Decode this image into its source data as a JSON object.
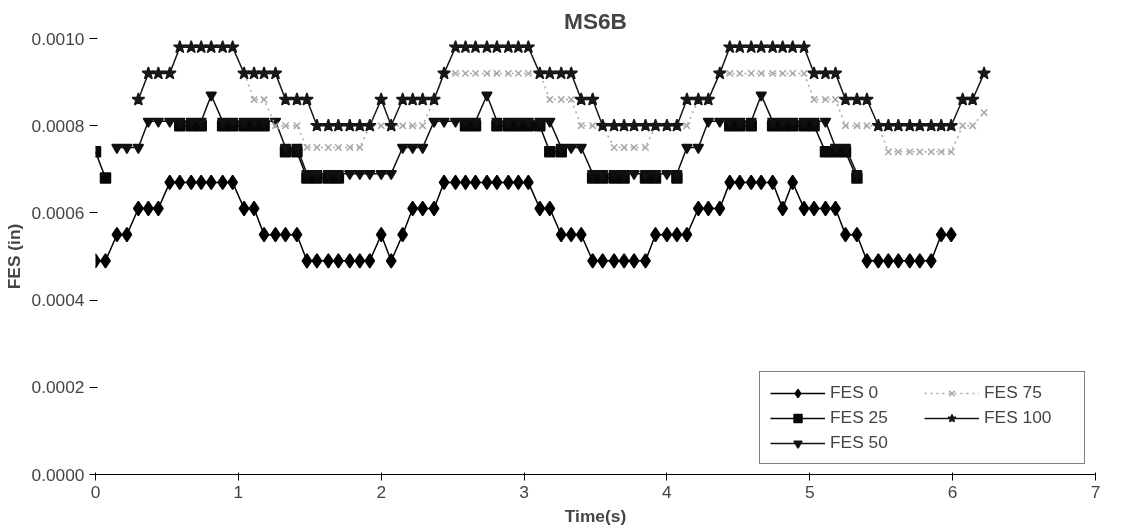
{
  "chart_data": {
    "type": "line",
    "title": "MS6B",
    "xlabel": "Time(s)",
    "ylabel": "FES (in)",
    "x": [
      0,
      0.07,
      0.15,
      0.22,
      0.3,
      0.37,
      0.44,
      0.52,
      0.59,
      0.67,
      0.74,
      0.81,
      0.89,
      0.96,
      1.04,
      1.11,
      1.18,
      1.26,
      1.33,
      1.41,
      1.48,
      1.55,
      1.63,
      1.7,
      1.78,
      1.85,
      1.92,
      2.0,
      2.07,
      2.15,
      2.22,
      2.29,
      2.37,
      2.44,
      2.52,
      2.59,
      2.66,
      2.74,
      2.81,
      2.89,
      2.96,
      3.03,
      3.11,
      3.18,
      3.26,
      3.33,
      3.4,
      3.48,
      3.55,
      3.63,
      3.7,
      3.77,
      3.85,
      3.92,
      4.0,
      4.07,
      4.14,
      4.22,
      4.29,
      4.37,
      4.44,
      4.51,
      4.59,
      4.66,
      4.74,
      4.81,
      4.88,
      4.96,
      5.03,
      5.11,
      5.18,
      5.25,
      5.33,
      5.4,
      5.48,
      5.55,
      5.62,
      5.7,
      5.77,
      5.85,
      5.92,
      5.99,
      6.07,
      6.14,
      6.22
    ],
    "series": [
      {
        "name": "FES 0",
        "color": "#000000",
        "marker": "diamond",
        "line_style": "solid",
        "values": [
          0.00049,
          0.00049,
          0.00055,
          0.00055,
          0.00061,
          0.00061,
          0.00061,
          0.00067,
          0.00067,
          0.00067,
          0.00067,
          0.00067,
          0.00067,
          0.00067,
          0.00061,
          0.00061,
          0.00055,
          0.00055,
          0.00055,
          0.00055,
          0.00049,
          0.00049,
          0.00049,
          0.00049,
          0.00049,
          0.00049,
          0.00049,
          0.00055,
          0.00049,
          0.00055,
          0.00061,
          0.00061,
          0.00061,
          0.00067,
          0.00067,
          0.00067,
          0.00067,
          0.00067,
          0.00067,
          0.00067,
          0.00067,
          0.00067,
          0.00061,
          0.00061,
          0.00055,
          0.00055,
          0.00055,
          0.00049,
          0.00049,
          0.00049,
          0.00049,
          0.00049,
          0.00049,
          0.00055,
          0.00055,
          0.00055,
          0.00055,
          0.00061,
          0.00061,
          0.00061,
          0.00067,
          0.00067,
          0.00067,
          0.00067,
          0.00067,
          0.00061,
          0.00067,
          0.00061,
          0.00061,
          0.00061,
          0.00061,
          0.00055,
          0.00055,
          0.00049,
          0.00049,
          0.00049,
          0.00049,
          0.00049,
          0.00049,
          0.00049,
          0.00055,
          0.00055,
          null,
          null,
          null
        ]
      },
      {
        "name": "FES 25",
        "color": "#080808",
        "marker": "square",
        "line_style": "solid",
        "values": [
          0.00074,
          0.00068,
          null,
          null,
          null,
          null,
          null,
          null,
          0.0008,
          0.0008,
          0.0008,
          null,
          0.0008,
          0.0008,
          0.0008,
          0.0008,
          0.0008,
          null,
          0.00074,
          0.00074,
          0.00068,
          0.00068,
          0.00068,
          0.00068,
          null,
          null,
          null,
          null,
          null,
          null,
          null,
          null,
          null,
          null,
          null,
          0.0008,
          0.0008,
          null,
          0.0008,
          0.0008,
          0.0008,
          0.0008,
          0.0008,
          0.00074,
          0.00074,
          null,
          null,
          0.00068,
          0.00068,
          0.00068,
          0.00068,
          null,
          0.00068,
          0.00068,
          null,
          0.00068,
          null,
          null,
          null,
          null,
          0.0008,
          0.0008,
          0.0008,
          null,
          0.0008,
          0.0008,
          0.0008,
          0.0008,
          0.0008,
          0.00074,
          0.00074,
          0.00074,
          0.00068,
          null,
          null,
          null,
          null,
          null,
          null,
          null,
          null,
          null,
          null,
          null,
          null
        ]
      },
      {
        "name": "FES 50",
        "color": "#101010",
        "marker": "triangle",
        "line_style": "solid",
        "values": [
          null,
          null,
          0.00075,
          0.00075,
          0.00075,
          0.00081,
          0.00081,
          0.00081,
          0.00081,
          0.00081,
          0.00081,
          0.00087,
          0.00081,
          0.00081,
          0.00081,
          0.00081,
          0.00081,
          0.00081,
          0.00075,
          0.00075,
          0.00069,
          0.00069,
          0.00069,
          0.00069,
          0.00069,
          0.00069,
          0.00069,
          0.00069,
          0.00069,
          0.00075,
          0.00075,
          0.00075,
          0.00081,
          0.00081,
          0.00081,
          0.00081,
          0.00081,
          0.00087,
          0.00081,
          0.00081,
          0.00081,
          0.00081,
          0.00081,
          0.00081,
          0.00075,
          0.00075,
          0.00075,
          0.00069,
          0.00069,
          0.00069,
          0.00069,
          0.00069,
          0.00069,
          0.00069,
          0.00069,
          0.00069,
          0.00075,
          0.00075,
          0.00081,
          0.00081,
          0.00081,
          0.00081,
          0.00081,
          0.00087,
          0.00081,
          0.00081,
          0.00081,
          0.00081,
          0.00081,
          0.00081,
          0.00075,
          0.00075,
          0.00069,
          null,
          null,
          null,
          null,
          null,
          null,
          null,
          null,
          null,
          null,
          null,
          null
        ]
      },
      {
        "name": "FES 75",
        "color": "#a8a8a8",
        "marker": "cross",
        "line_style": "dotted",
        "values": [
          null,
          null,
          null,
          null,
          null,
          null,
          null,
          null,
          null,
          null,
          null,
          null,
          null,
          null,
          0.00092,
          0.00086,
          0.00086,
          0.0008,
          0.0008,
          0.0008,
          0.00075,
          0.00075,
          0.00075,
          0.00075,
          0.00075,
          0.00075,
          0.0008,
          0.0008,
          0.0008,
          0.0008,
          0.0008,
          0.0008,
          0.00086,
          0.00092,
          0.00092,
          0.00092,
          0.00092,
          0.00092,
          0.00092,
          0.00092,
          0.00092,
          0.00092,
          0.00092,
          0.00086,
          0.00086,
          0.00086,
          0.0008,
          0.0008,
          0.0008,
          0.00075,
          0.00075,
          0.00075,
          0.00075,
          0.0008,
          0.0008,
          0.0008,
          0.0008,
          0.00086,
          0.00086,
          0.00092,
          0.00092,
          0.00092,
          0.00092,
          0.00092,
          0.00092,
          0.00092,
          0.00092,
          0.00092,
          0.00086,
          0.00086,
          0.00086,
          0.0008,
          0.0008,
          0.0008,
          0.0008,
          0.00074,
          0.00074,
          0.00074,
          0.00074,
          0.00074,
          0.00074,
          0.00074,
          0.0008,
          0.0008,
          0.00083
        ]
      },
      {
        "name": "FES 100",
        "color": "#181818",
        "marker": "star",
        "line_style": "solid",
        "values": [
          null,
          null,
          null,
          null,
          0.00086,
          0.00092,
          0.00092,
          0.00092,
          0.00098,
          0.00098,
          0.00098,
          0.00098,
          0.00098,
          0.00098,
          0.00092,
          0.00092,
          0.00092,
          0.00092,
          0.00086,
          0.00086,
          0.00086,
          0.0008,
          0.0008,
          0.0008,
          0.0008,
          0.0008,
          0.0008,
          0.00086,
          0.0008,
          0.00086,
          0.00086,
          0.00086,
          0.00086,
          0.00092,
          0.00098,
          0.00098,
          0.00098,
          0.00098,
          0.00098,
          0.00098,
          0.00098,
          0.00098,
          0.00092,
          0.00092,
          0.00092,
          0.00092,
          0.00086,
          0.00086,
          0.0008,
          0.0008,
          0.0008,
          0.0008,
          0.0008,
          0.0008,
          0.0008,
          0.0008,
          0.00086,
          0.00086,
          0.00086,
          0.00092,
          0.00098,
          0.00098,
          0.00098,
          0.00098,
          0.00098,
          0.00098,
          0.00098,
          0.00098,
          0.00092,
          0.00092,
          0.00092,
          0.00086,
          0.00086,
          0.00086,
          0.0008,
          0.0008,
          0.0008,
          0.0008,
          0.0008,
          0.0008,
          0.0008,
          0.0008,
          0.00086,
          0.00086,
          0.00092
        ]
      }
    ],
    "xlim": [
      0,
      7
    ],
    "xticks": [
      0,
      1,
      2,
      3,
      4,
      5,
      6,
      7
    ],
    "ylim": [
      0,
      0.001
    ],
    "yticks": [
      {
        "value": 0,
        "label": "0.0000"
      },
      {
        "value": 0.0002,
        "label": "0.0002"
      },
      {
        "value": 0.0004,
        "label": "0.0004"
      },
      {
        "value": 0.0006,
        "label": "0.0006"
      },
      {
        "value": 0.0008,
        "label": "0.0008"
      },
      {
        "value": 0.001,
        "label": "0.0010"
      }
    ],
    "grid": false,
    "legend": "bottom right"
  }
}
